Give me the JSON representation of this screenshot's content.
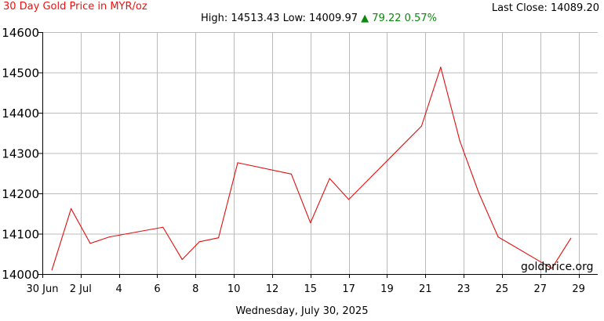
{
  "header": {
    "title": "30 Day Gold Price in MYR/oz",
    "last_close": "Last Close: 14089.20",
    "high_label": "High: 14513.43",
    "low_label": "Low: 14009.97",
    "change_arrow": "▲",
    "change_value": "79.22 0.57%"
  },
  "footer": {
    "date": "Wednesday, July 30, 2025",
    "watermark": "goldprice.org"
  },
  "colors": {
    "line": "#e01010",
    "grid": "#bbbbbb",
    "title": "#ee1111",
    "change": "#0a8a0a"
  },
  "chart_data": {
    "type": "line",
    "title": "30 Day Gold Price in MYR/oz",
    "xlabel": "",
    "ylabel": "",
    "ylim": [
      14000,
      14600
    ],
    "xlim": [
      0,
      29
    ],
    "grid": true,
    "yticks": [
      14000,
      14100,
      14200,
      14300,
      14400,
      14500,
      14600
    ],
    "xticks": [
      {
        "x": 0,
        "label": "30 Jun"
      },
      {
        "x": 2,
        "label": "2 Jul"
      },
      {
        "x": 4,
        "label": "4"
      },
      {
        "x": 6,
        "label": "6"
      },
      {
        "x": 8,
        "label": "8"
      },
      {
        "x": 10,
        "label": "10"
      },
      {
        "x": 12,
        "label": "12"
      },
      {
        "x": 14,
        "label": "15"
      },
      {
        "x": 16,
        "label": "17"
      },
      {
        "x": 18,
        "label": "19"
      },
      {
        "x": 20,
        "label": "21"
      },
      {
        "x": 22,
        "label": "23"
      },
      {
        "x": 24,
        "label": "25"
      },
      {
        "x": 26,
        "label": "27"
      },
      {
        "x": 28,
        "label": "29"
      }
    ],
    "series": [
      {
        "points": [
          {
            "x": 0.5,
            "y": 14010
          },
          {
            "x": 1.5,
            "y": 14162
          },
          {
            "x": 2.5,
            "y": 14076
          },
          {
            "x": 3.5,
            "y": 14092
          },
          {
            "x": 6.3,
            "y": 14116
          },
          {
            "x": 7.3,
            "y": 14036
          },
          {
            "x": 8.2,
            "y": 14080
          },
          {
            "x": 9.2,
            "y": 14090
          },
          {
            "x": 10.2,
            "y": 14276
          },
          {
            "x": 13.0,
            "y": 14248
          },
          {
            "x": 14.0,
            "y": 14127
          },
          {
            "x": 15.0,
            "y": 14237
          },
          {
            "x": 16.0,
            "y": 14185
          },
          {
            "x": 19.8,
            "y": 14367
          },
          {
            "x": 20.8,
            "y": 14513
          },
          {
            "x": 21.8,
            "y": 14330
          },
          {
            "x": 22.8,
            "y": 14200
          },
          {
            "x": 23.8,
            "y": 14092
          },
          {
            "x": 26.6,
            "y": 14014
          },
          {
            "x": 27.6,
            "y": 14089
          }
        ]
      }
    ]
  }
}
